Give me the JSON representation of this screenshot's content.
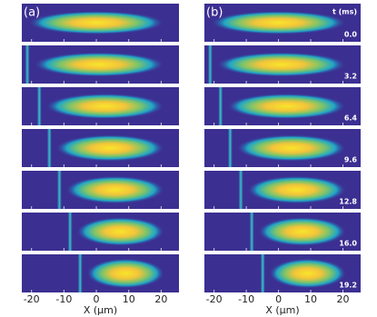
{
  "chart_data": {
    "type": "image-panels",
    "time_label": "t (ms)",
    "times": [
      "0.0",
      "3.2",
      "6.4",
      "9.6",
      "12.8",
      "16.0",
      "19.2"
    ],
    "panels": [
      {
        "label": "(a)",
        "barrier_x": [
          null,
          -21.3,
          -17.6,
          -14.5,
          -11.4,
          -8.1,
          -5.0
        ]
      },
      {
        "label": "(b)",
        "barrier_x": [
          null,
          -21.2,
          -18.0,
          -15.0,
          -11.7,
          -8.3,
          -4.9
        ]
      }
    ],
    "xlim": [
      -23,
      25.5
    ],
    "xticks": [
      -20,
      -10,
      0,
      10,
      20
    ],
    "xlabel": "X (μm)"
  }
}
